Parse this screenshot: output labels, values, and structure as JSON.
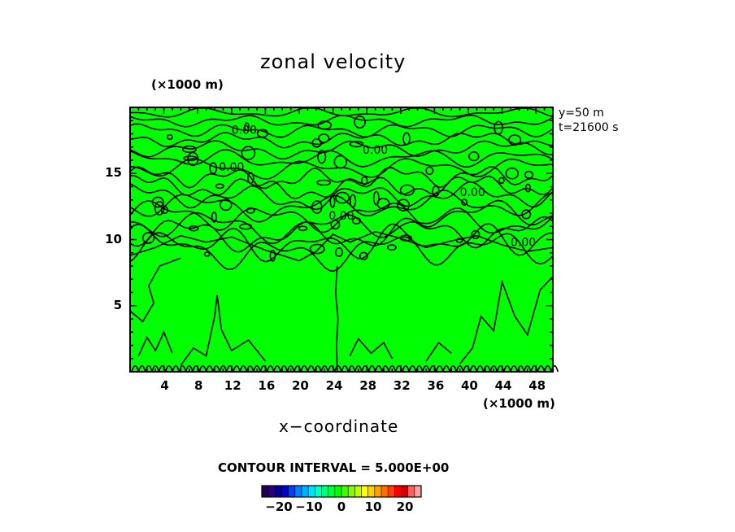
{
  "chart_data": {
    "type": "contour",
    "title": "zonal velocity",
    "xlabel": "x−coordinate",
    "x_unit": "(×1000 m)",
    "y_unit": "(×1000 m)",
    "info_lines": [
      "y=50  m",
      "t=21600  s"
    ],
    "xlim": [
      0,
      50
    ],
    "ylim": [
      0,
      20
    ],
    "x_ticks": [
      4,
      8,
      12,
      16,
      20,
      24,
      28,
      32,
      36,
      40,
      44,
      48
    ],
    "y_ticks": [
      5,
      10,
      15
    ],
    "fill_color": "#00ff00",
    "contour_labels": [
      {
        "text": "0.00",
        "x": 12.0,
        "y": 18.0
      },
      {
        "text": "0.00",
        "x": 27.5,
        "y": 16.5
      },
      {
        "text": "0.00",
        "x": 10.5,
        "y": 15.2
      },
      {
        "text": "0.00",
        "x": 39.0,
        "y": 13.3
      },
      {
        "text": "0.00",
        "x": 23.5,
        "y": 11.5
      },
      {
        "text": "0.00",
        "x": 45.0,
        "y": 9.5
      }
    ],
    "contour_interval_text": "CONTOUR INTERVAL = 5.000E+00",
    "colorbar": {
      "colors": [
        "#220055",
        "#2a0080",
        "#0000a0",
        "#0000d0",
        "#0040ff",
        "#0080ff",
        "#00b0ff",
        "#00e0ff",
        "#00ffc0",
        "#00ff80",
        "#00ff40",
        "#00ff00",
        "#40ff00",
        "#80ff00",
        "#c0ff00",
        "#ffff00",
        "#ffd000",
        "#ffa000",
        "#ff7000",
        "#ff4000",
        "#ff0000",
        "#d00000",
        "#ff6060",
        "#ffa0a0"
      ],
      "labels": [
        "−20",
        "−10",
        "0",
        "10",
        "20"
      ]
    }
  }
}
